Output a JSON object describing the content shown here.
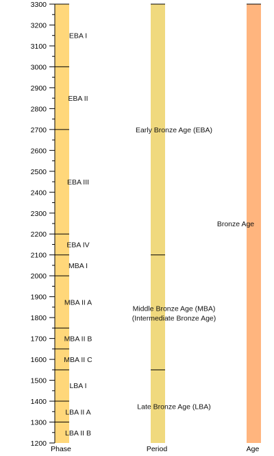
{
  "axis": {
    "min": 1200,
    "max": 3300,
    "major_step": 100,
    "minor_step": 50,
    "ticks": [
      1200,
      1300,
      1400,
      1500,
      1600,
      1700,
      1800,
      1900,
      2000,
      2100,
      2200,
      2300,
      2400,
      2500,
      2600,
      2700,
      2800,
      2900,
      3000,
      3100,
      3200,
      3300
    ]
  },
  "columns": [
    {
      "name": "phase",
      "label": "Phase",
      "color": "#FFD77A",
      "segments": [
        {
          "label": "EBA I",
          "start": 3000,
          "end": 3300
        },
        {
          "label": "EBA II",
          "start": 2700,
          "end": 3000
        },
        {
          "label": "EBA III",
          "start": 2200,
          "end": 2700
        },
        {
          "label": "EBA IV",
          "start": 2100,
          "end": 2200
        },
        {
          "label": "MBA I",
          "start": 2000,
          "end": 2100
        },
        {
          "label": "MBA II A",
          "start": 1750,
          "end": 2000
        },
        {
          "label": "MBA II B",
          "start": 1650,
          "end": 1750
        },
        {
          "label": "MBA II C",
          "start": 1550,
          "end": 1650
        },
        {
          "label": "LBA I",
          "start": 1400,
          "end": 1550
        },
        {
          "label": "LBA II A",
          "start": 1300,
          "end": 1400
        },
        {
          "label": "LBA II B",
          "start": 1200,
          "end": 1300
        }
      ]
    },
    {
      "name": "period",
      "label": "Period",
      "color": "#F0D97E",
      "segments": [
        {
          "label": "Early Bronze Age (EBA)",
          "start": 2100,
          "end": 3300
        },
        {
          "label": "Middle Bronze Age (MBA)",
          "label2": "(Intermediate Bronze Age)",
          "start": 1550,
          "end": 2100
        },
        {
          "label": "Late Bronze Age (LBA)",
          "start": 1200,
          "end": 1550
        }
      ]
    },
    {
      "name": "age",
      "label": "Age",
      "color": "#FFB57E",
      "segments": [
        {
          "label": "Bronze Age",
          "start": 1200,
          "end": 3300
        }
      ]
    }
  ]
}
